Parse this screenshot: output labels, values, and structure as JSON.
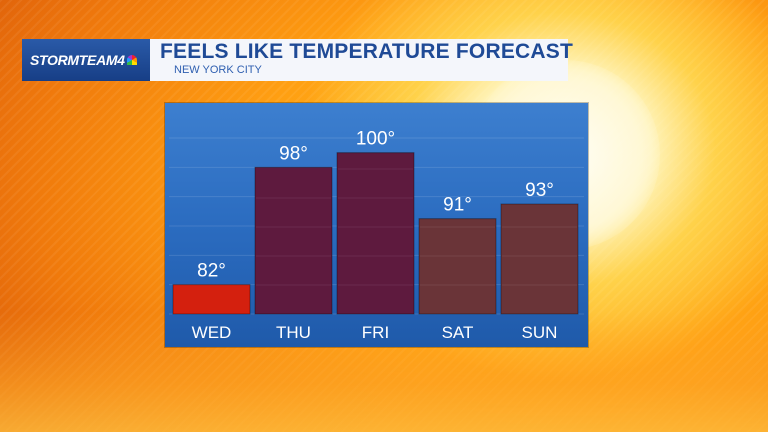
{
  "header": {
    "logo_text": "STORMTEAM4",
    "title": "FEELS LIKE TEMPERATURE FORECAST",
    "subtitle": "NEW YORK CITY"
  },
  "colors": {
    "panel": "#2b6cc0",
    "bar_dark": "#5e1a3e",
    "bar_mid": "#652845",
    "bar_brown": "#6a3438",
    "bar_red": "#d4200e",
    "title": "#1f4a96"
  },
  "chart_data": {
    "type": "bar",
    "title": "FEELS LIKE TEMPERATURE FORECAST",
    "subtitle": "NEW YORK CITY",
    "categories": [
      "WED",
      "THU",
      "FRI",
      "SAT",
      "SUN"
    ],
    "values": [
      82,
      98,
      100,
      91,
      93
    ],
    "value_labels": [
      "82°",
      "98°",
      "100°",
      "91°",
      "93°"
    ],
    "bar_colors": [
      "#d4200e",
      "#5e1a3e",
      "#5e1a3e",
      "#6a3438",
      "#6a3438"
    ],
    "ylim": [
      78,
      102
    ],
    "xlabel": "",
    "ylabel": "",
    "grid": true,
    "legend": "none"
  }
}
